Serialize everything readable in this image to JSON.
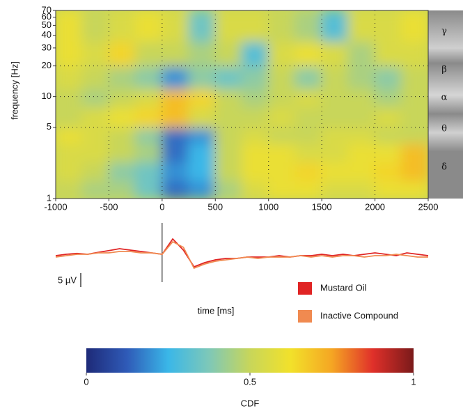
{
  "chart_data": [
    {
      "type": "heatmap",
      "ylabel": "frequency [Hz]",
      "log_y": true,
      "grid": true,
      "xlim": [
        -1000,
        2500
      ],
      "xticks": [
        -1000,
        -500,
        0,
        500,
        1000,
        1500,
        2000,
        2500
      ],
      "ylim": [
        1,
        70
      ],
      "yticks": [
        1,
        5,
        10,
        20,
        30,
        40,
        50,
        60,
        70
      ],
      "x_bins": [
        -1000,
        -750,
        -500,
        -250,
        0,
        250,
        500,
        750,
        1000,
        1250,
        1500,
        1750,
        2000,
        2250,
        2500
      ],
      "y_bins": [
        1,
        1.5,
        2.3,
        3.5,
        5,
        8,
        12,
        20,
        35,
        70
      ],
      "values": [
        [
          0.5,
          0.45,
          0.45,
          0.35,
          0.15,
          0.2,
          0.45,
          0.55,
          0.6,
          0.6,
          0.55,
          0.55,
          0.6,
          0.6
        ],
        [
          0.55,
          0.5,
          0.4,
          0.35,
          0.2,
          0.25,
          0.5,
          0.6,
          0.6,
          0.65,
          0.6,
          0.6,
          0.65,
          0.7
        ],
        [
          0.55,
          0.55,
          0.5,
          0.45,
          0.15,
          0.25,
          0.5,
          0.6,
          0.6,
          0.55,
          0.55,
          0.6,
          0.6,
          0.7
        ],
        [
          0.6,
          0.55,
          0.5,
          0.4,
          0.15,
          0.2,
          0.5,
          0.55,
          0.5,
          0.5,
          0.55,
          0.55,
          0.5,
          0.5
        ],
        [
          0.5,
          0.55,
          0.6,
          0.65,
          0.7,
          0.55,
          0.5,
          0.5,
          0.55,
          0.5,
          0.5,
          0.5,
          0.55,
          0.5
        ],
        [
          0.5,
          0.45,
          0.5,
          0.55,
          0.7,
          0.65,
          0.5,
          0.45,
          0.5,
          0.55,
          0.5,
          0.5,
          0.45,
          0.5
        ],
        [
          0.55,
          0.5,
          0.45,
          0.4,
          0.2,
          0.4,
          0.35,
          0.4,
          0.5,
          0.4,
          0.5,
          0.45,
          0.4,
          0.5
        ],
        [
          0.6,
          0.55,
          0.65,
          0.5,
          0.5,
          0.45,
          0.5,
          0.3,
          0.55,
          0.6,
          0.55,
          0.45,
          0.55,
          0.55
        ],
        [
          0.6,
          0.5,
          0.55,
          0.6,
          0.55,
          0.35,
          0.55,
          0.55,
          0.5,
          0.45,
          0.3,
          0.55,
          0.55,
          0.6
        ]
      ],
      "bands": [
        "γ",
        "β",
        "α",
        "θ",
        "δ"
      ]
    },
    {
      "type": "line",
      "xlabel": "time [ms]",
      "xlim": [
        -1000,
        2500
      ],
      "scale_bar": {
        "value": 5,
        "label": "5 µV"
      },
      "x": [
        -1000,
        -900,
        -800,
        -700,
        -600,
        -500,
        -400,
        -300,
        -200,
        -100,
        0,
        100,
        200,
        300,
        400,
        500,
        600,
        700,
        800,
        900,
        1000,
        1100,
        1200,
        1300,
        1400,
        1500,
        1600,
        1700,
        1800,
        1900,
        2000,
        2100,
        2200,
        2300,
        2400,
        2500
      ],
      "series": [
        {
          "name": "Mustard Oil",
          "color": "#e02424",
          "values": [
            0,
            0.5,
            0.8,
            0.5,
            1.2,
            1.8,
            2.5,
            2,
            1.5,
            1,
            0.5,
            6,
            2,
            -4,
            -2.5,
            -1.5,
            -1,
            -1,
            -0.5,
            -0.5,
            -0.5,
            0,
            -0.5,
            0,
            0,
            0.5,
            0,
            0.5,
            0,
            0.5,
            1,
            0.5,
            0,
            1,
            0.5,
            0
          ]
        },
        {
          "name": "Inactive Compound",
          "color": "#f08a50",
          "values": [
            -0.5,
            0,
            0.5,
            0.5,
            1,
            1,
            1.5,
            1.5,
            1,
            1,
            0.5,
            5,
            3,
            -4.5,
            -3,
            -2,
            -1.5,
            -1,
            -0.5,
            -1,
            -0.5,
            -0.5,
            -0.5,
            0,
            -0.5,
            0,
            -0.5,
            0,
            0,
            -0.5,
            0,
            0,
            0.5,
            0,
            -0.5,
            -0.5
          ]
        }
      ]
    },
    {
      "type": "colorbar",
      "label": "CDF",
      "lim": [
        0,
        1
      ],
      "ticks": [
        0,
        0.5,
        1
      ],
      "colors": [
        "#1e2a78",
        "#2f5bb8",
        "#3ab7e8",
        "#7ec8b8",
        "#c8d65a",
        "#f2e12a",
        "#f5a623",
        "#e0302a",
        "#7a1a1a"
      ]
    }
  ]
}
